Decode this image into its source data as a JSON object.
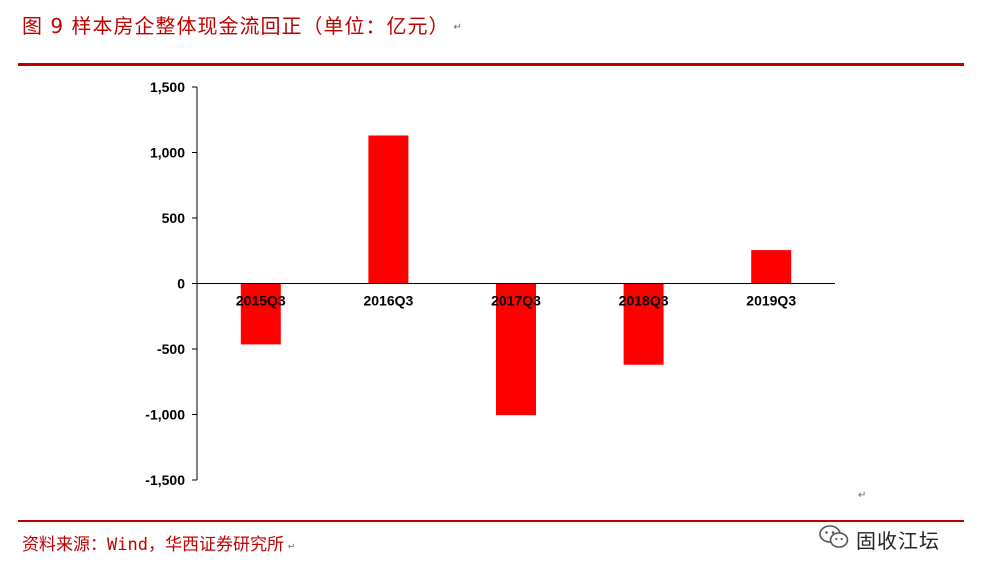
{
  "header": {
    "title": "图 9 样本房企整体现金流回正（单位：亿元）",
    "para_mark": "↵"
  },
  "chart_data": {
    "type": "bar",
    "categories": [
      "2015Q3",
      "2016Q3",
      "2017Q3",
      "2018Q3",
      "2019Q3"
    ],
    "values": [
      -465,
      1130,
      -1005,
      -620,
      255
    ],
    "title": "",
    "xlabel": "",
    "ylabel": "",
    "ylim": [
      -1500,
      1500
    ],
    "y_ticks": [
      1500,
      1000,
      500,
      0,
      -500,
      -1000,
      -1500
    ],
    "y_tick_labels": [
      "1,500",
      "1,000",
      "500",
      "0",
      "-500",
      "-1,000",
      "-1,500"
    ],
    "bar_color": "#ff0000",
    "grid": false,
    "legend": "none"
  },
  "footer": {
    "source": "资料来源：Wind，华西证券研究所",
    "para_mark": "↵",
    "loose_mark": "↵",
    "brand_name": "固收江坛",
    "brand_icon": "wechat-icon"
  },
  "colors": {
    "accent": "#c00000",
    "bar": "#ff0000",
    "axis": "#000000"
  }
}
